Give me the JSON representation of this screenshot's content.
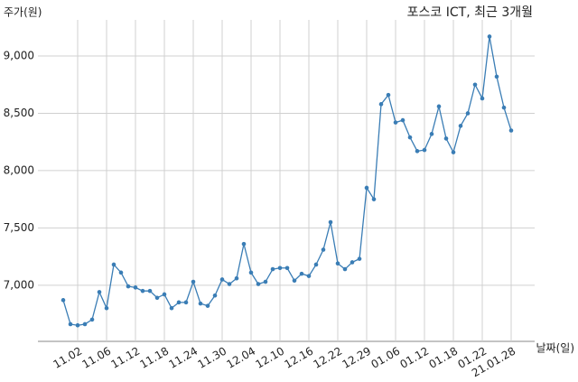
{
  "chart_data": {
    "type": "line",
    "title": "포스코 ICT, 최근 3개월",
    "y_label": "주가(원)",
    "x_label": "날짜(일)",
    "categories": [
      null,
      null,
      "11.02",
      null,
      null,
      null,
      "11.06",
      null,
      null,
      null,
      "11.12",
      null,
      null,
      null,
      "11.18",
      null,
      null,
      null,
      "11.24",
      null,
      null,
      null,
      "11.30",
      null,
      null,
      null,
      "12.04",
      null,
      null,
      null,
      "12.10",
      null,
      null,
      null,
      "12.16",
      null,
      null,
      null,
      "12.22",
      null,
      null,
      null,
      "12.29",
      null,
      null,
      null,
      "01.06",
      null,
      null,
      null,
      "01.12",
      null,
      null,
      null,
      "01.18",
      null,
      null,
      null,
      "01.22",
      null,
      null,
      null,
      "21.01.28"
    ],
    "values": [
      6870,
      6660,
      6650,
      6660,
      6700,
      6940,
      6800,
      7180,
      7110,
      6990,
      6980,
      6950,
      6950,
      6890,
      6920,
      6800,
      6850,
      6850,
      7030,
      6840,
      6820,
      6910,
      7050,
      7010,
      7060,
      7360,
      7110,
      7010,
      7030,
      7140,
      7150,
      7150,
      7040,
      7100,
      7080,
      7180,
      7310,
      7550,
      7190,
      7140,
      7200,
      7230,
      7850,
      7750,
      8580,
      8660,
      8420,
      8440,
      8290,
      8170,
      8180,
      8320,
      8560,
      8280,
      8160,
      8390,
      8500,
      8750,
      8630,
      9170,
      8820,
      8550,
      8350
    ],
    "color": "#3a7db5",
    "ylim": [
      6510,
      9410
    ],
    "yticks": [
      {
        "value": 7000,
        "label": "7,000"
      },
      {
        "value": 7500,
        "label": "7,500"
      },
      {
        "value": 8000,
        "label": "8,000"
      },
      {
        "value": 8500,
        "label": "8,500"
      },
      {
        "value": 9000,
        "label": "9,000"
      }
    ],
    "grid": true
  }
}
